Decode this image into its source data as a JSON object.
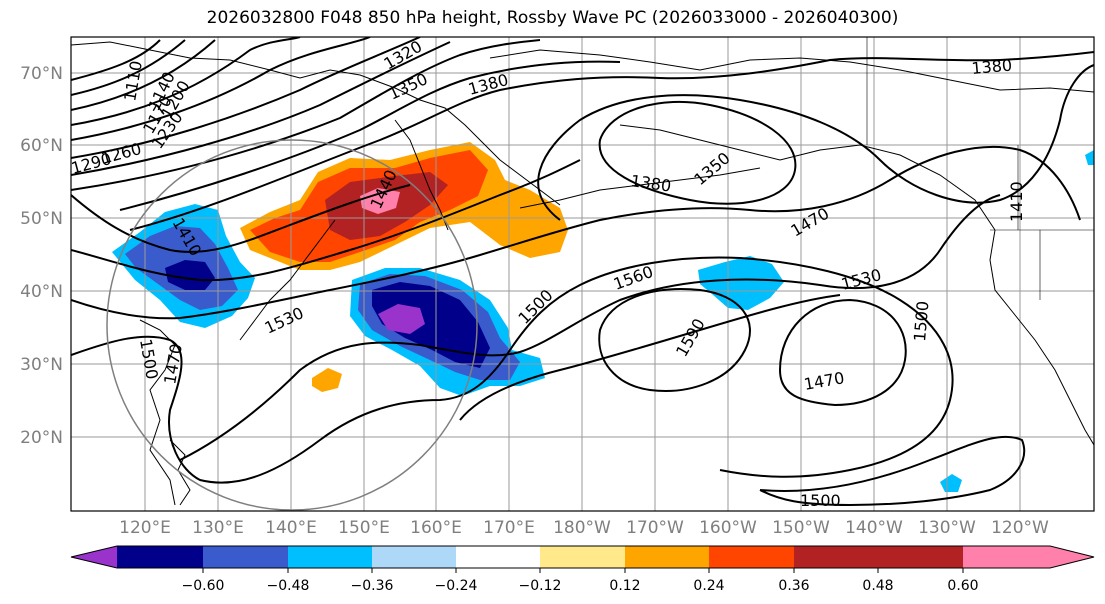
{
  "title": "2026032800 F048 850 hPa height, Rossby Wave PC (2026033000 - 2026040300)",
  "map": {
    "lat_labels": [
      "70°N",
      "60°N",
      "50°N",
      "40°N",
      "30°N",
      "20°N"
    ],
    "lon_labels": [
      "120°E",
      "130°E",
      "140°E",
      "150°E",
      "160°E",
      "170°E",
      "180°W",
      "170°W",
      "160°W",
      "150°W",
      "140°W",
      "130°W",
      "120°W"
    ],
    "contour_labels": [
      "1320",
      "1350",
      "1380",
      "1380",
      "1110",
      "1140",
      "1170",
      "1230",
      "1200",
      "1290",
      "1260",
      "1380",
      "1350",
      "1440",
      "1410",
      "1470",
      "1560",
      "1530",
      "1500",
      "1590",
      "1500",
      "1470",
      "1530",
      "1500",
      "1410",
      "1470",
      "1500"
    ]
  },
  "colorbar": {
    "colors": [
      "#9933cc",
      "#00008b",
      "#3a5bcc",
      "#00bfff",
      "#add8f7",
      "#ffffff",
      "#ffe98a",
      "#ffa500",
      "#ff4500",
      "#b22222",
      "#ff80aa"
    ],
    "ticks": [
      "−0.60",
      "−0.48",
      "−0.36",
      "−0.24",
      "−0.12",
      "0.12",
      "0.24",
      "0.36",
      "0.48",
      "0.60"
    ]
  }
}
